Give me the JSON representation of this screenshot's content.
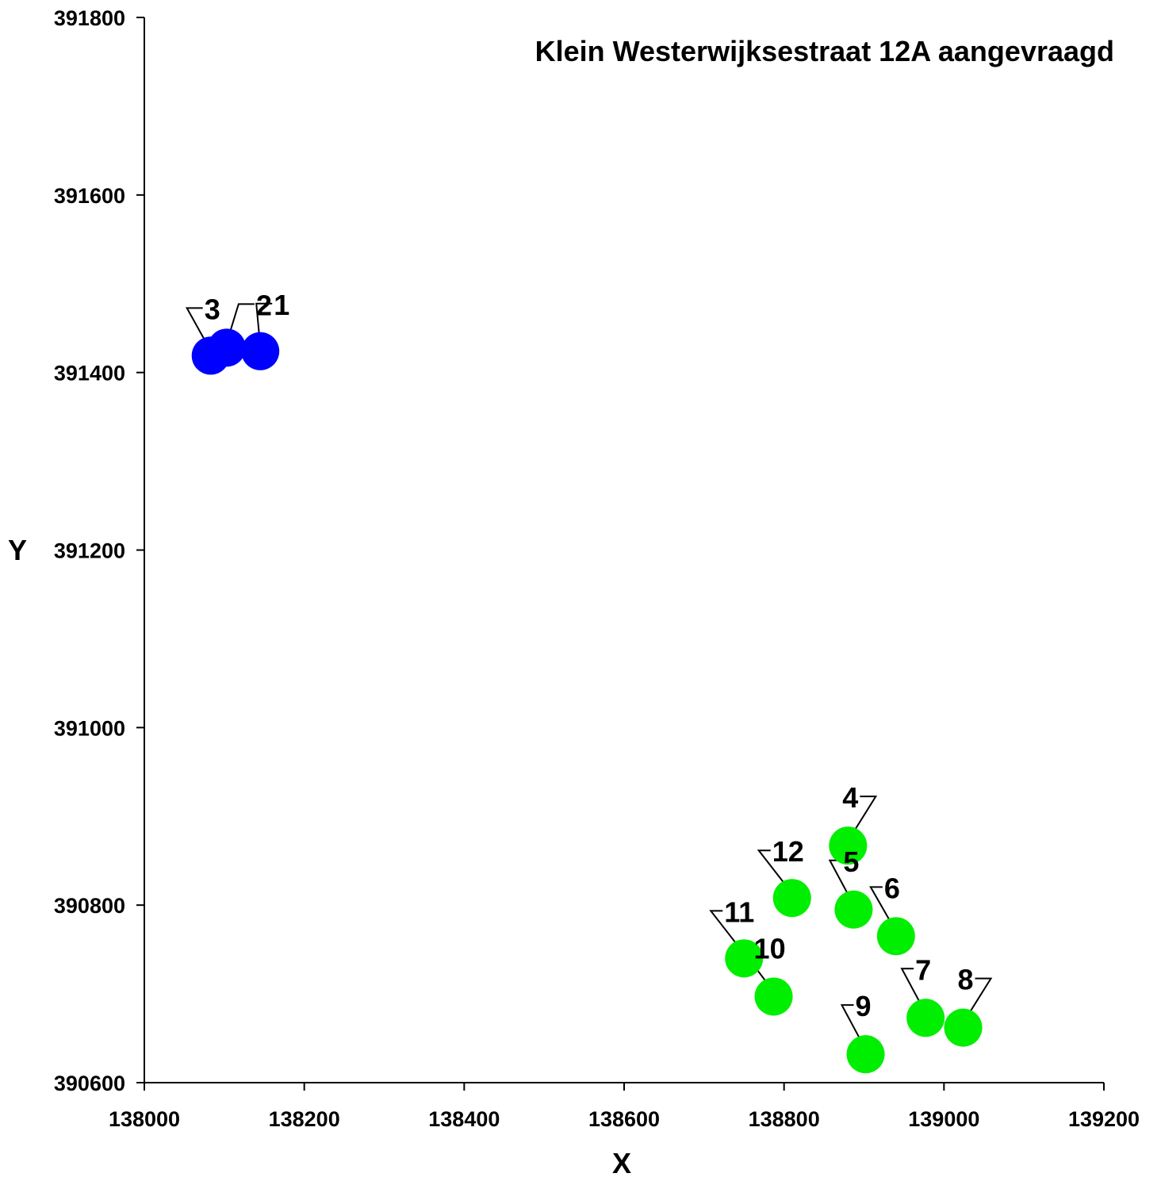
{
  "chart_data": {
    "type": "scatter",
    "title": "Klein Westerwijksestraat 12A aangevraagd",
    "xlabel": "X",
    "ylabel": "Y",
    "xlim": [
      138000,
      139200
    ],
    "ylim": [
      390600,
      391800
    ],
    "x_ticks": [
      "138000",
      "138200",
      "138400",
      "138600",
      "138800",
      "139000",
      "139200"
    ],
    "y_ticks": [
      "390600",
      "390800",
      "391000",
      "391200",
      "391400",
      "391600",
      "391800"
    ],
    "grid": false,
    "series": [
      {
        "color": "#0000ff",
        "points": [
          {
            "label": "1",
            "x": 138145,
            "y": 391424
          },
          {
            "label": "2",
            "x": 138103,
            "y": 391428
          },
          {
            "label": "3",
            "x": 138083,
            "y": 391419
          }
        ]
      },
      {
        "color": "#00ee00",
        "points": [
          {
            "label": "4",
            "x": 138880,
            "y": 390867
          },
          {
            "label": "5",
            "x": 138887,
            "y": 390795
          },
          {
            "label": "6",
            "x": 138940,
            "y": 390765
          },
          {
            "label": "7",
            "x": 138977,
            "y": 390673
          },
          {
            "label": "8",
            "x": 139024,
            "y": 390662
          },
          {
            "label": "9",
            "x": 138902,
            "y": 390632
          },
          {
            "label": "10",
            "x": 138787,
            "y": 390697
          },
          {
            "label": "11",
            "x": 138750,
            "y": 390740
          },
          {
            "label": "12",
            "x": 138810,
            "y": 390808
          }
        ]
      }
    ]
  }
}
